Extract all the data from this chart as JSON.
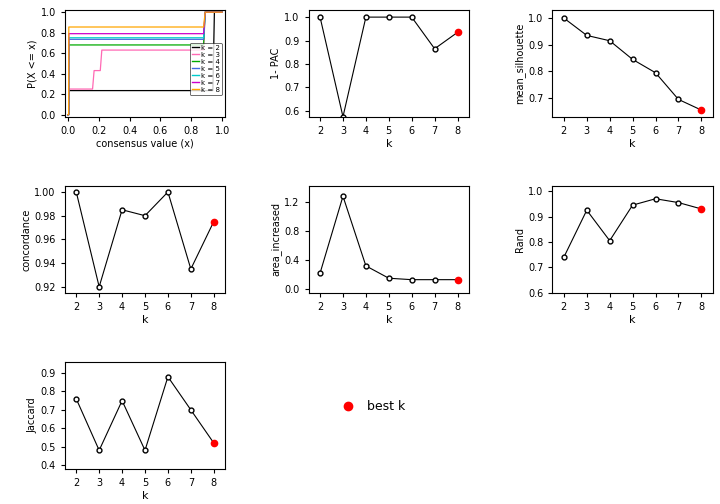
{
  "k_values": [
    2,
    3,
    4,
    5,
    6,
    7,
    8
  ],
  "one_minus_pac": [
    1.0,
    0.575,
    1.0,
    1.0,
    1.0,
    0.865,
    0.935
  ],
  "mean_silhouette": [
    1.0,
    0.935,
    0.915,
    0.845,
    0.795,
    0.695,
    0.655
  ],
  "concordance": [
    1.0,
    0.92,
    0.985,
    0.98,
    1.0,
    0.935,
    0.975
  ],
  "area_increased": [
    0.22,
    1.28,
    0.32,
    0.15,
    0.13,
    0.13,
    0.13
  ],
  "rand": [
    0.74,
    0.925,
    0.805,
    0.945,
    0.97,
    0.955,
    0.93
  ],
  "jaccard": [
    0.76,
    0.48,
    0.75,
    0.48,
    0.88,
    0.7,
    0.52
  ],
  "best_k": 8,
  "cdf_colors": [
    "#000000",
    "#FF69B4",
    "#00AA00",
    "#4169E1",
    "#00CCCC",
    "#CC00CC",
    "#FFA500"
  ],
  "cdf_labels": [
    "k = 2",
    "k = 3",
    "k = 4",
    "k = 5",
    "k = 6",
    "k = 7",
    "k = 8"
  ],
  "background_color": "#FFFFFF",
  "one_minus_pac_yticks": [
    0.6,
    0.7,
    0.8,
    0.9,
    1.0
  ],
  "mean_sil_yticks": [
    0.7,
    0.8,
    0.9,
    1.0
  ],
  "concordance_yticks": [
    0.92,
    0.94,
    0.96,
    0.98,
    1.0
  ],
  "area_yticks": [
    0.0,
    0.4,
    0.8,
    1.2
  ],
  "rand_yticks": [
    0.6,
    0.7,
    0.8,
    0.9,
    1.0
  ],
  "jaccard_yticks": [
    0.4,
    0.5,
    0.6,
    0.7,
    0.8,
    0.9
  ],
  "cdf_yticks": [
    0.0,
    0.2,
    0.4,
    0.6,
    0.8,
    1.0
  ],
  "cdf_xticks": [
    0.0,
    0.2,
    0.4,
    0.6,
    0.8,
    1.0
  ]
}
